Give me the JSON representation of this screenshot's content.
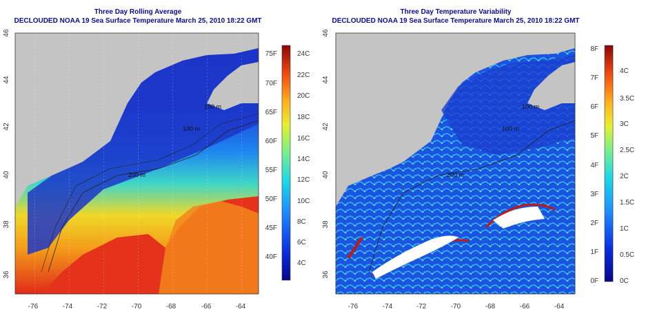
{
  "left_panel": {
    "title": "Three Day Rolling Average",
    "subtitle": "DECLOUDED NOAA 19 Sea Surface Temperature March 25, 2010 18:22 GMT",
    "x_ticks": [
      "-76",
      "-74",
      "-72",
      "-70",
      "-68",
      "-66",
      "-64"
    ],
    "y_ticks": [
      "36",
      "38",
      "40",
      "42",
      "44",
      "46"
    ],
    "contour_labels": [
      "200 m",
      "100 m",
      "100 m"
    ],
    "colorbar_f": [
      "75F",
      "70F",
      "65F",
      "60F",
      "55F",
      "50F",
      "45F",
      "40F"
    ],
    "colorbar_c": [
      "24C",
      "22C",
      "20C",
      "18C",
      "16C",
      "14C",
      "12C",
      "10C",
      "8C",
      "6C",
      "4C"
    ]
  },
  "right_panel": {
    "title": "Three Day Temperature Variability",
    "subtitle": "DECLOUDED NOAA 19 Sea Surface Temperature March 25, 2010 18:22 GMT",
    "x_ticks": [
      "-76",
      "-74",
      "-72",
      "-70",
      "-68",
      "-66",
      "-64"
    ],
    "y_ticks": [
      "36",
      "38",
      "40",
      "42",
      "44",
      "46"
    ],
    "contour_labels": [
      "200 m",
      "100 m",
      "100 m"
    ],
    "colorbar_f": [
      "8F",
      "7F",
      "6F",
      "5F",
      "4F",
      "3F",
      "2F",
      "1F",
      "0F"
    ],
    "colorbar_c": [
      "4C",
      "3.5C",
      "3C",
      "2.5C",
      "2C",
      "1.5C",
      "1C",
      "0.5C",
      "0C"
    ]
  },
  "colors": {
    "title": "#0b0b8f",
    "land": "#c4c4c4",
    "ocean_cold": "#1a3fd0",
    "ocean_warm": "#e0301c"
  }
}
